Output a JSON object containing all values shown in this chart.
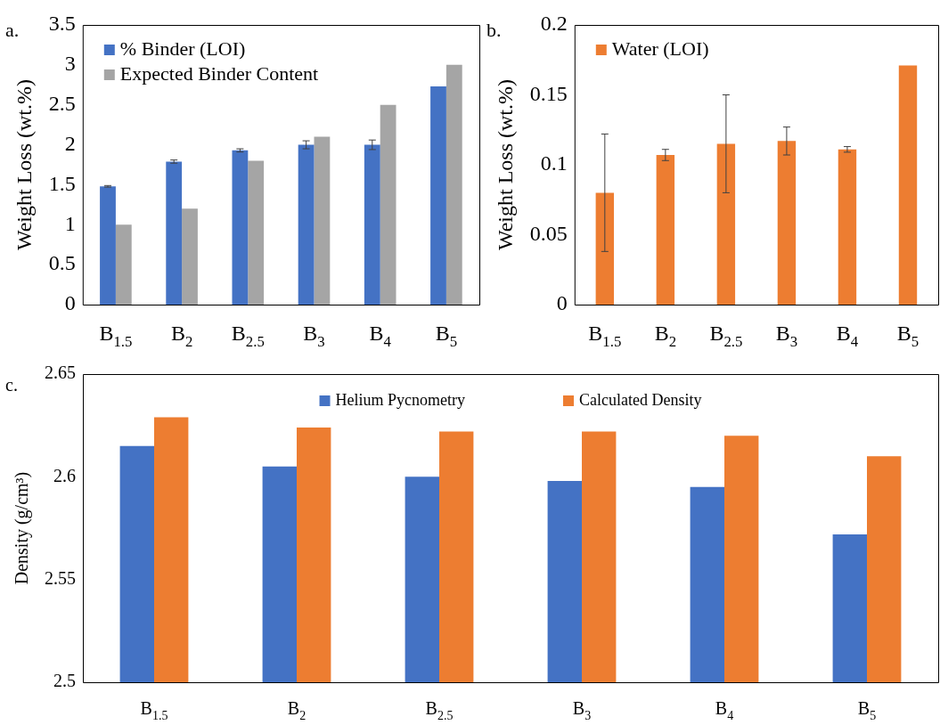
{
  "chart_data": [
    {
      "type": "bar",
      "annotations": [
        "a."
      ],
      "ylabel": "Weight Loss (wt.%)",
      "categories": [
        "B$_{1.5}$",
        "B$_{2}$",
        "B$_{2.5}$",
        "B$_{3}$",
        "B$_{4}$",
        "B$_{5}$"
      ],
      "ylim": [
        0,
        3.5
      ],
      "yticks": [
        0,
        0.5,
        1,
        1.5,
        2,
        2.5,
        3,
        3.5
      ],
      "legend": "top left",
      "series": [
        {
          "name": "% Binder (LOI)",
          "color": "#4472c4",
          "values": [
            1.48,
            1.79,
            1.93,
            2.0,
            2.0,
            2.73
          ],
          "errors": [
            0.01,
            0.02,
            0.02,
            0.05,
            0.06,
            null
          ]
        },
        {
          "name": "Expected Binder Content",
          "color": "#a5a5a5",
          "values": [
            1.0,
            1.2,
            1.8,
            2.1,
            2.5,
            3.0
          ]
        }
      ]
    },
    {
      "type": "bar",
      "annotations": [
        "b."
      ],
      "ylabel": "Weight Loss (wt.%)",
      "categories": [
        "B$_{1.5}$",
        "B$_{2}$",
        "B$_{2.5}$",
        "B$_{3}$",
        "B$_{4}$",
        "B$_{5}$"
      ],
      "ylim": [
        0,
        0.2
      ],
      "yticks": [
        0,
        0.05,
        0.1,
        0.15,
        0.2
      ],
      "legend": "top left",
      "series": [
        {
          "name": "Water (LOI)",
          "color": "#ed7d31",
          "values": [
            0.08,
            0.107,
            0.115,
            0.117,
            0.111,
            0.171
          ],
          "errors": [
            0.042,
            0.004,
            0.035,
            0.01,
            0.002,
            null
          ]
        }
      ]
    },
    {
      "type": "bar",
      "annotations": [
        "c."
      ],
      "ylabel": "Density (g/cm³)",
      "categories": [
        "B$_{1.5}$",
        "B$_{2}$",
        "B$_{2.5}$",
        "B$_{3}$",
        "B$_{4}$",
        "B$_{5}$"
      ],
      "ylim": [
        2.5,
        2.65
      ],
      "yticks": [
        2.5,
        2.55,
        2.6,
        2.65
      ],
      "legend": "top",
      "series": [
        {
          "name": "Helium Pycnometry",
          "color": "#4472c4",
          "values": [
            2.615,
            2.605,
            2.6,
            2.598,
            2.595,
            2.572
          ]
        },
        {
          "name": "Calculated Density",
          "color": "#ed7d31",
          "values": [
            2.629,
            2.624,
            2.622,
            2.622,
            2.62,
            2.61
          ]
        }
      ]
    }
  ]
}
